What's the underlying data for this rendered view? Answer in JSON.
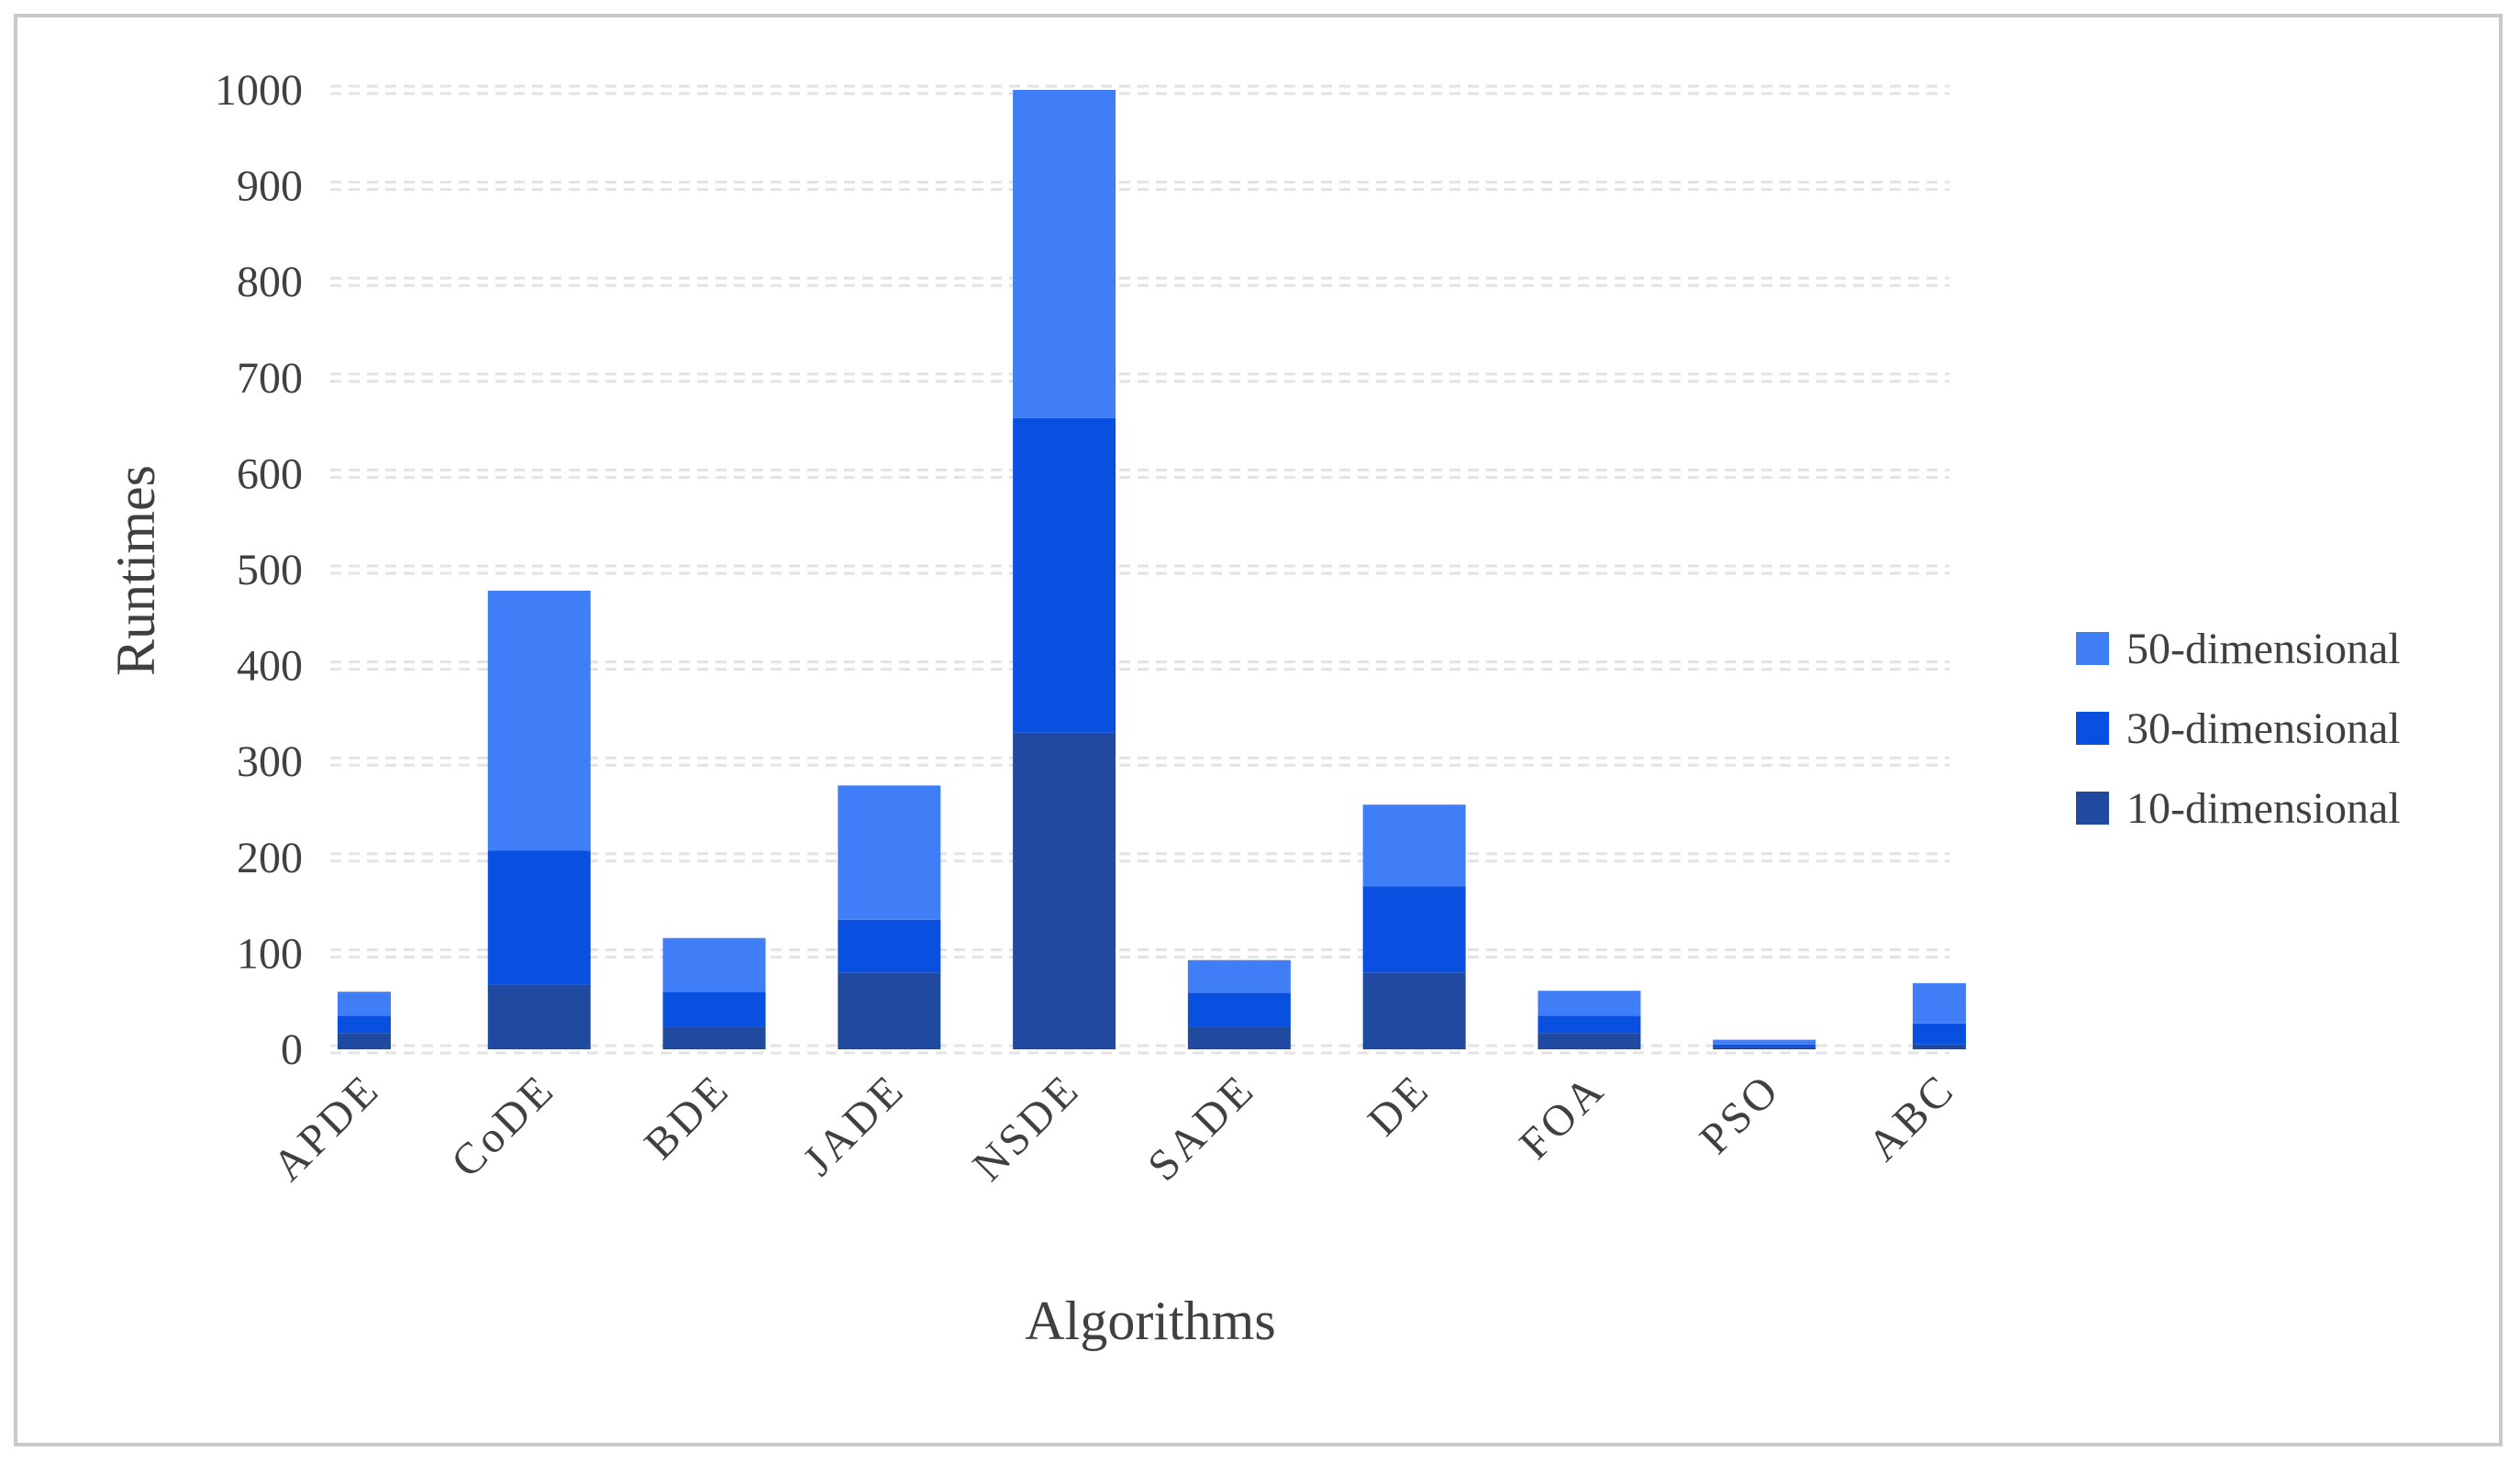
{
  "chart_data": {
    "type": "bar",
    "stacked": true,
    "title": "",
    "xlabel": "Algorithms",
    "ylabel": "Runtimes",
    "ylim": [
      0,
      1000
    ],
    "yticks": [
      0,
      100,
      200,
      300,
      400,
      500,
      600,
      700,
      800,
      900,
      1000
    ],
    "grid": true,
    "legend_position": "right",
    "categories": [
      "APDE",
      "CoDE",
      "BDE",
      "JADE",
      "NSDE",
      "SADE",
      "DE",
      "FOA",
      "PSO",
      "ABC"
    ],
    "series": [
      {
        "name": "10-dimensional",
        "color": "#1f4aa0",
        "values": [
          17,
          67,
          23,
          80,
          330,
          23,
          80,
          17,
          2,
          5
        ]
      },
      {
        "name": "30-dimensional",
        "color": "#0a50e0",
        "values": [
          18,
          140,
          37,
          55,
          328,
          36,
          90,
          18,
          3,
          22
        ]
      },
      {
        "name": "50-dimensional",
        "color": "#3f7ef6",
        "values": [
          25,
          271,
          56,
          140,
          342,
          34,
          85,
          26,
          5,
          42
        ]
      }
    ]
  }
}
